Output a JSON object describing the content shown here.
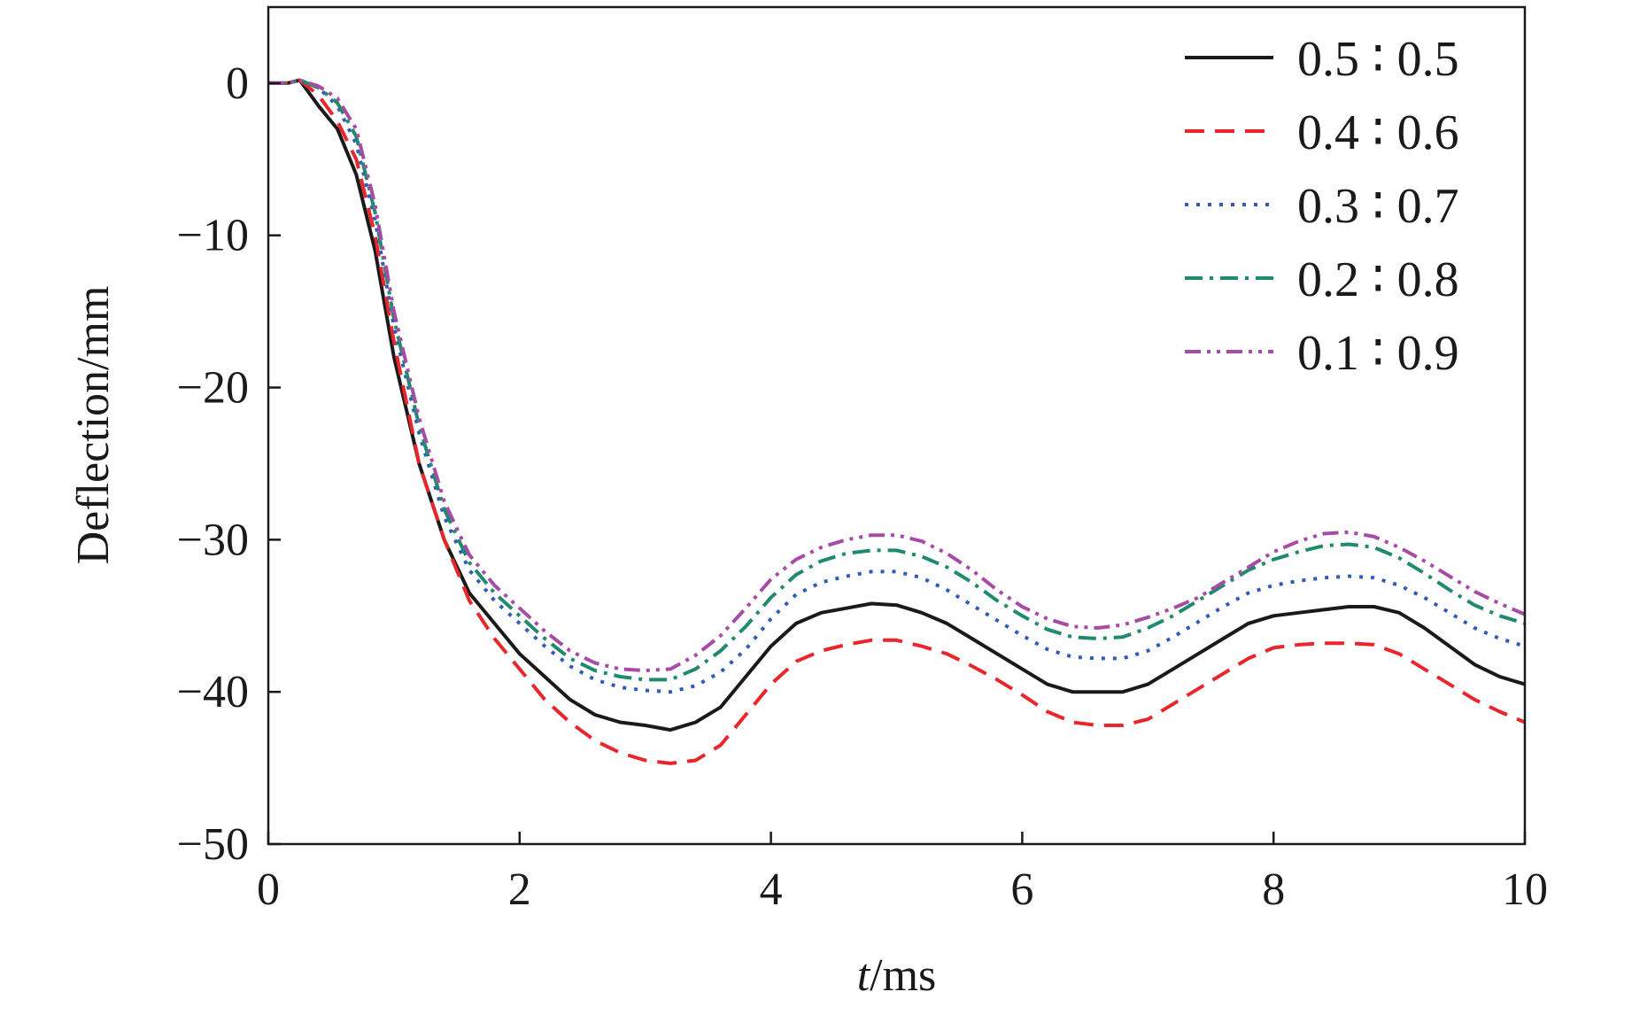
{
  "chart_data": {
    "type": "line",
    "title": "",
    "xlabel_var": "t",
    "xlabel_unit": "/ms",
    "ylabel": "Deflection/mm",
    "xlim": [
      0,
      10
    ],
    "ylim": [
      -50,
      5
    ],
    "xticks": [
      0,
      2,
      4,
      6,
      8,
      10
    ],
    "yticks": [
      0,
      -10,
      -20,
      -30,
      -40,
      -50
    ],
    "ytick_labels": [
      "0",
      "−10",
      "−20",
      "−30",
      "−40",
      "−50"
    ],
    "grid": false,
    "legend_position": "top-right",
    "x": [
      0,
      0.15,
      0.25,
      0.4,
      0.55,
      0.7,
      0.85,
      1.0,
      1.2,
      1.4,
      1.6,
      1.8,
      2.0,
      2.2,
      2.4,
      2.6,
      2.8,
      3.0,
      3.2,
      3.4,
      3.6,
      3.8,
      4.0,
      4.2,
      4.4,
      4.6,
      4.8,
      5.0,
      5.2,
      5.4,
      5.6,
      5.8,
      6.0,
      6.2,
      6.4,
      6.6,
      6.8,
      7.0,
      7.2,
      7.4,
      7.6,
      7.8,
      8.0,
      8.2,
      8.4,
      8.6,
      8.8,
      9.0,
      9.2,
      9.4,
      9.6,
      9.8,
      10.0
    ],
    "series": [
      {
        "name": "0.5 ∶ 0.5",
        "color": "#1a1a1a",
        "dash": "solid",
        "values": [
          0,
          0,
          0.2,
          -1.5,
          -3,
          -6,
          -11,
          -18,
          -25,
          -30,
          -33.5,
          -35.5,
          -37.5,
          -39,
          -40.5,
          -41.5,
          -42,
          -42.2,
          -42.5,
          -42,
          -41,
          -39,
          -37,
          -35.5,
          -34.8,
          -34.5,
          -34.2,
          -34.3,
          -34.8,
          -35.5,
          -36.5,
          -37.5,
          -38.5,
          -39.5,
          -40,
          -40,
          -40,
          -39.5,
          -38.5,
          -37.5,
          -36.5,
          -35.5,
          -35,
          -34.8,
          -34.6,
          -34.4,
          -34.4,
          -34.8,
          -35.8,
          -37,
          -38.2,
          -39,
          -39.5
        ]
      },
      {
        "name": "0.4 ∶ 0.6",
        "color": "#e8262b",
        "dash": "dashed",
        "values": [
          0,
          0,
          0.2,
          -0.8,
          -2.5,
          -5,
          -10,
          -17,
          -25,
          -30,
          -34,
          -36.5,
          -38.5,
          -40.5,
          -42,
          -43.2,
          -44,
          -44.5,
          -44.7,
          -44.5,
          -43.5,
          -41.5,
          -39.5,
          -38,
          -37.3,
          -36.9,
          -36.6,
          -36.6,
          -37,
          -37.5,
          -38.3,
          -39.2,
          -40.2,
          -41.3,
          -42,
          -42.2,
          -42.2,
          -41.8,
          -40.8,
          -39.8,
          -38.8,
          -37.8,
          -37.1,
          -36.9,
          -36.8,
          -36.8,
          -36.9,
          -37.5,
          -38.5,
          -39.5,
          -40.5,
          -41.3,
          -42
        ]
      },
      {
        "name": "0.3 ∶ 0.7",
        "color": "#2f5cb8",
        "dash": "dotted",
        "values": [
          0,
          0,
          0.2,
          -0.3,
          -1.5,
          -4,
          -9,
          -16,
          -23,
          -28.5,
          -32,
          -34,
          -35.5,
          -37,
          -38.3,
          -39.2,
          -39.7,
          -39.9,
          -40,
          -39.6,
          -38.7,
          -37.2,
          -35.2,
          -33.6,
          -32.8,
          -32.4,
          -32.1,
          -32.1,
          -32.5,
          -33.3,
          -34.3,
          -35.3,
          -36.3,
          -37.2,
          -37.7,
          -37.8,
          -37.8,
          -37.3,
          -36.4,
          -35.4,
          -34.4,
          -33.5,
          -33,
          -32.7,
          -32.5,
          -32.4,
          -32.5,
          -33,
          -33.8,
          -34.8,
          -35.8,
          -36.5,
          -37
        ]
      },
      {
        "name": "0.2 ∶ 0.8",
        "color": "#1f8a6e",
        "dash": "dashdot",
        "values": [
          0,
          0,
          0.2,
          -0.3,
          -1.3,
          -3.5,
          -8.5,
          -15.5,
          -22.5,
          -28,
          -31.5,
          -33.5,
          -35,
          -36.5,
          -37.8,
          -38.6,
          -39,
          -39.2,
          -39.2,
          -38.5,
          -37.3,
          -35.7,
          -33.8,
          -32.3,
          -31.4,
          -30.9,
          -30.7,
          -30.7,
          -31.1,
          -31.8,
          -32.8,
          -34,
          -35,
          -35.9,
          -36.4,
          -36.5,
          -36.4,
          -35.8,
          -35,
          -34,
          -33,
          -32,
          -31.3,
          -30.8,
          -30.4,
          -30.3,
          -30.5,
          -31.2,
          -32.2,
          -33.3,
          -34.3,
          -35,
          -35.5
        ]
      },
      {
        "name": "0.1 ∶ 0.9",
        "color": "#a64ca6",
        "dash": "dashdotdot",
        "values": [
          0,
          0,
          0.2,
          -0.2,
          -1,
          -3,
          -8,
          -15,
          -22,
          -27.5,
          -31,
          -33,
          -34.5,
          -36,
          -37.3,
          -38.1,
          -38.5,
          -38.6,
          -38.5,
          -37.6,
          -36.3,
          -34.5,
          -32.6,
          -31.3,
          -30.5,
          -30,
          -29.7,
          -29.7,
          -30.1,
          -30.9,
          -32,
          -33.3,
          -34.4,
          -35.2,
          -35.7,
          -35.8,
          -35.6,
          -35.1,
          -34.5,
          -33.8,
          -32.8,
          -31.8,
          -30.8,
          -30.1,
          -29.6,
          -29.5,
          -29.8,
          -30.5,
          -31.4,
          -32.4,
          -33.4,
          -34.2,
          -34.9
        ]
      }
    ]
  }
}
